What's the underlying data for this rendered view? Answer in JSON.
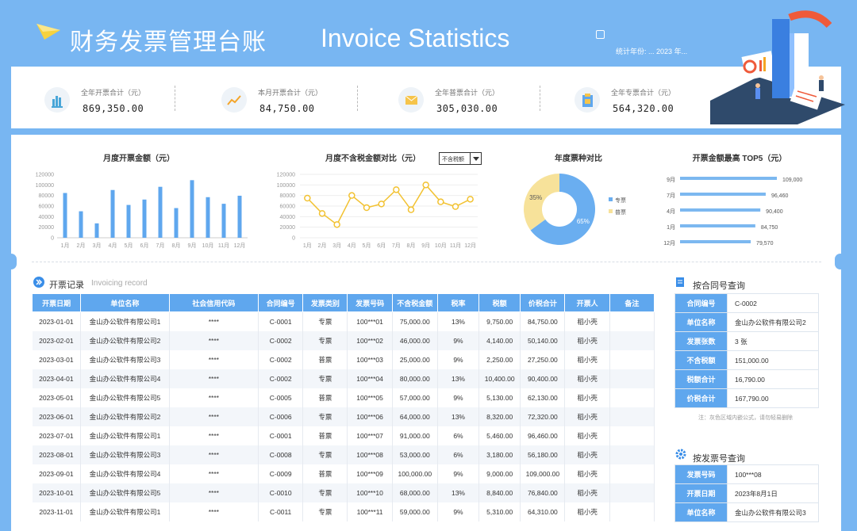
{
  "header": {
    "title_cn": "财务发票管理台账",
    "title_en": "Invoice Statistics",
    "year_label": "统计年份:",
    "year_value": "2023",
    "year_suffix": "年"
  },
  "stats": [
    {
      "label": "全年开票合计（元）",
      "value": "869,350.00",
      "icon": "bar-chart-icon"
    },
    {
      "label": "本月开票合计（元）",
      "value": "84,750.00",
      "icon": "trend-line-icon"
    },
    {
      "label": "全年普票合计（元）",
      "value": "305,030.00",
      "icon": "envelope-icon"
    },
    {
      "label": "全年专票合计（元）",
      "value": "564,320.00",
      "icon": "clipboard-icon"
    }
  ],
  "chart_data": [
    {
      "type": "bar",
      "title": "月度开票金额（元）",
      "categories": [
        "1月",
        "2月",
        "3月",
        "4月",
        "5月",
        "6月",
        "7月",
        "8月",
        "9月",
        "10月",
        "11月",
        "12月"
      ],
      "values": [
        84750,
        50140,
        27250,
        90400,
        62130,
        72320,
        96460,
        56180,
        109000,
        76840,
        64310,
        79570
      ],
      "ylim": [
        0,
        120000
      ],
      "yticks": [
        "120000",
        "100000",
        "80000",
        "60000",
        "40000",
        "20000",
        "0"
      ],
      "color": "#5fa7ee"
    },
    {
      "type": "line",
      "title": "月度不含税金额对比（元）",
      "dropdown": "不含税额",
      "categories": [
        "1月",
        "2月",
        "3月",
        "4月",
        "5月",
        "6月",
        "7月",
        "8月",
        "9月",
        "10月",
        "11月",
        "12月"
      ],
      "values": [
        75000,
        46000,
        25000,
        80000,
        57000,
        64000,
        91000,
        53000,
        100000,
        68000,
        59000,
        73000
      ],
      "ylim": [
        0,
        120000
      ],
      "yticks": [
        "120000",
        "100000",
        "80000",
        "60000",
        "40000",
        "20000",
        "0"
      ],
      "color": "#f2c232"
    },
    {
      "type": "pie",
      "title": "年度票种对比",
      "slices": [
        {
          "name": "专票",
          "percent": 65,
          "label": "65%",
          "color": "#6aaef0"
        },
        {
          "name": "普票",
          "percent": 35,
          "label": "35%",
          "color": "#f7e29a"
        }
      ]
    },
    {
      "type": "bar",
      "orientation": "horizontal",
      "title": "开票金额最高 TOP5（元）",
      "categories": [
        "9月",
        "7月",
        "4月",
        "1月",
        "12月"
      ],
      "values": [
        109000,
        96460,
        90400,
        84750,
        79570
      ],
      "labels": [
        "109,000",
        "96,460",
        "90,400",
        "84,750",
        "79,570"
      ],
      "xlim": [
        0,
        109000
      ],
      "color": "#7cb8f0"
    }
  ],
  "records": {
    "title": "开票记录",
    "subtitle": "Invoicing record",
    "columns": [
      "开票日期",
      "单位名称",
      "社会信用代码",
      "合同编号",
      "发票类别",
      "发票号码",
      "不含税金额",
      "税率",
      "税额",
      "价税合计",
      "开票人",
      "备注"
    ],
    "rows": [
      [
        "2023-01-01",
        "金山办公软件有限公司1",
        "****",
        "C-0001",
        "专票",
        "100***01",
        "75,000.00",
        "13%",
        "9,750.00",
        "84,750.00",
        "稻小壳",
        ""
      ],
      [
        "2023-02-01",
        "金山办公软件有限公司2",
        "****",
        "C-0002",
        "专票",
        "100***02",
        "46,000.00",
        "9%",
        "4,140.00",
        "50,140.00",
        "稻小壳",
        ""
      ],
      [
        "2023-03-01",
        "金山办公软件有限公司3",
        "****",
        "C-0002",
        "普票",
        "100***03",
        "25,000.00",
        "9%",
        "2,250.00",
        "27,250.00",
        "稻小壳",
        ""
      ],
      [
        "2023-04-01",
        "金山办公软件有限公司4",
        "****",
        "C-0002",
        "专票",
        "100***04",
        "80,000.00",
        "13%",
        "10,400.00",
        "90,400.00",
        "稻小壳",
        ""
      ],
      [
        "2023-05-01",
        "金山办公软件有限公司5",
        "****",
        "C-0005",
        "普票",
        "100***05",
        "57,000.00",
        "9%",
        "5,130.00",
        "62,130.00",
        "稻小壳",
        ""
      ],
      [
        "2023-06-01",
        "金山办公软件有限公司2",
        "****",
        "C-0006",
        "专票",
        "100***06",
        "64,000.00",
        "13%",
        "8,320.00",
        "72,320.00",
        "稻小壳",
        ""
      ],
      [
        "2023-07-01",
        "金山办公软件有限公司1",
        "****",
        "C-0001",
        "普票",
        "100***07",
        "91,000.00",
        "6%",
        "5,460.00",
        "96,460.00",
        "稻小壳",
        ""
      ],
      [
        "2023-08-01",
        "金山办公软件有限公司3",
        "****",
        "C-0008",
        "专票",
        "100***08",
        "53,000.00",
        "6%",
        "3,180.00",
        "56,180.00",
        "稻小壳",
        ""
      ],
      [
        "2023-09-01",
        "金山办公软件有限公司4",
        "****",
        "C-0009",
        "普票",
        "100***09",
        "100,000.00",
        "9%",
        "9,000.00",
        "109,000.00",
        "稻小壳",
        ""
      ],
      [
        "2023-10-01",
        "金山办公软件有限公司5",
        "****",
        "C-0010",
        "专票",
        "100***10",
        "68,000.00",
        "13%",
        "8,840.00",
        "76,840.00",
        "稻小壳",
        ""
      ],
      [
        "2023-11-01",
        "金山办公软件有限公司1",
        "****",
        "C-0011",
        "专票",
        "100***11",
        "59,000.00",
        "9%",
        "5,310.00",
        "64,310.00",
        "稻小壳",
        ""
      ]
    ]
  },
  "contract_query": {
    "title": "按合同号查询",
    "rows": [
      [
        "合同编号",
        "C-0002"
      ],
      [
        "单位名称",
        "金山办公软件有限公司2"
      ],
      [
        "发票张数",
        "3 张"
      ],
      [
        "不含税额",
        "151,000.00"
      ],
      [
        "税额合计",
        "16,790.00"
      ],
      [
        "价税合计",
        "167,790.00"
      ]
    ],
    "note": "注：灰色区域内嵌公式，请勿轻易删除"
  },
  "invoice_query": {
    "title": "按发票号查询",
    "rows": [
      [
        "发票号码",
        "100***08"
      ],
      [
        "开票日期",
        "2023年8月1日"
      ],
      [
        "单位名称",
        "金山办公软件有限公司3"
      ]
    ]
  }
}
